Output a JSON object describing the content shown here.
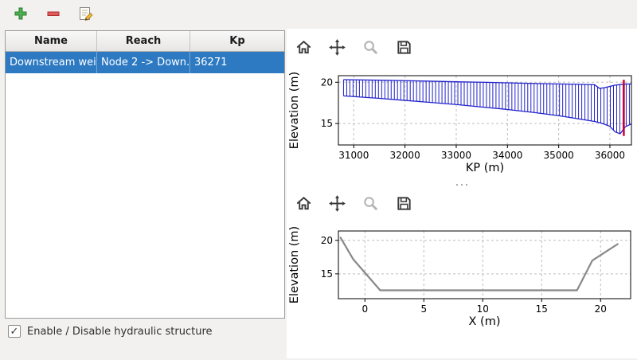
{
  "main_toolbar": {
    "buttons": [
      {
        "id": "add-structure",
        "icon": "plus-icon"
      },
      {
        "id": "remove-structure",
        "icon": "minus-icon"
      },
      {
        "id": "edit-structure",
        "icon": "edit-icon"
      }
    ]
  },
  "structures_table": {
    "columns": [
      "Name",
      "Reach",
      "Kp"
    ],
    "rows": [
      {
        "name": "Downstream weir",
        "reach": "Node 2 -> Down...",
        "kp": "36271",
        "selected": true
      }
    ],
    "selection_color": "#2d7ac2"
  },
  "enable_checkbox": {
    "label": "Enable / Disable hydraulic structure",
    "checked": true,
    "glyph": "✓"
  },
  "plot_toolbars": {
    "icons": [
      "home-icon",
      "pan-icon",
      "zoom-icon",
      "save-icon"
    ]
  },
  "chart_data": [
    {
      "type": "area",
      "title": "",
      "xlabel": "KP (m)",
      "ylabel": "Elevation (m)",
      "xlim": [
        30700,
        36420
      ],
      "ylim": [
        12.4,
        20.8
      ],
      "xticks": [
        31000,
        32000,
        33000,
        34000,
        35000,
        36000
      ],
      "yticks": [
        15,
        20
      ],
      "grid": true,
      "legend": false,
      "band": {
        "name": "longitudinal riverbed profile (hatched cross-sections)",
        "x": [
          30800,
          31500,
          32000,
          32500,
          33000,
          33500,
          34000,
          34500,
          35000,
          35400,
          35700,
          35800,
          35900,
          36000,
          36100,
          36200,
          36300,
          36420
        ],
        "top": [
          20.32,
          20.25,
          20.2,
          20.13,
          20.06,
          20.0,
          19.93,
          19.86,
          19.8,
          19.75,
          19.7,
          19.25,
          19.35,
          19.5,
          19.65,
          19.72,
          19.78,
          19.8
        ],
        "bottom": [
          18.35,
          18.05,
          17.8,
          17.55,
          17.3,
          17.0,
          16.7,
          16.35,
          15.95,
          15.55,
          15.25,
          15.1,
          14.9,
          14.65,
          14.0,
          13.75,
          14.6,
          14.95
        ],
        "hatch_step": 62,
        "color": "#2222cc"
      },
      "marker": {
        "name": "structure location",
        "x": 36271,
        "y0": 13.5,
        "y1": 20.3,
        "color": "#cc0033"
      }
    },
    {
      "type": "line",
      "title": "",
      "xlabel": "X (m)",
      "ylabel": "Elevation (m)",
      "xlim": [
        -2.25,
        22.55
      ],
      "ylim": [
        11.3,
        21.4
      ],
      "xticks": [
        0,
        5,
        10,
        15,
        20
      ],
      "yticks": [
        15,
        20
      ],
      "grid": true,
      "legend": false,
      "name": "cross-section at structure",
      "x": [
        -2.1,
        -1.0,
        1.3,
        18.0,
        19.3,
        21.5
      ],
      "y": [
        20.5,
        17.2,
        12.55,
        12.55,
        17.0,
        19.5
      ],
      "color": "#888888"
    }
  ]
}
